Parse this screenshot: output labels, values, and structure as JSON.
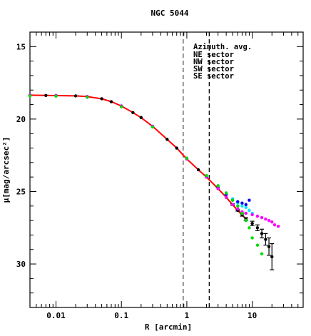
{
  "chart_data": {
    "type": "scatter",
    "title": "NGC 5044",
    "xlabel": "R [arcmin]",
    "ylabel": "μ[mag/arcsec²]",
    "xscale": "log",
    "xlim": [
      0.004,
      60
    ],
    "ylim": [
      33,
      14
    ],
    "y_inverted": true,
    "x_ticklabels": [
      "0.01",
      "0.1",
      "1",
      "10"
    ],
    "y_ticklabels": [
      "15",
      "20",
      "25",
      "30"
    ],
    "vlines": [
      {
        "x": 0.88,
        "style": "dashed",
        "color": "#555555"
      },
      {
        "x": 2.2,
        "style": "dashed",
        "color": "#000000"
      }
    ],
    "legend_position": "top-right",
    "legend": {
      "title": "Azimuth. avg.",
      "entries": [
        {
          "label": "NE sector",
          "color": "#00e5ff"
        },
        {
          "label": "NW sector",
          "color": "#0000ff"
        },
        {
          "label": "SW sector",
          "color": "#ff00ff"
        },
        {
          "label": "SE sector",
          "color": "#00dd00"
        }
      ]
    },
    "profile_model": {
      "x": [
        0.004,
        0.007,
        0.01,
        0.02,
        0.03,
        0.05,
        0.07,
        0.1,
        0.15,
        0.2,
        0.3,
        0.5,
        0.7,
        1.0,
        1.5,
        2.0,
        3.0,
        4.0,
        5.0,
        6.0,
        7.0,
        8.0
      ],
      "y": [
        18.35,
        18.37,
        18.38,
        18.4,
        18.45,
        18.6,
        18.8,
        19.1,
        19.55,
        19.9,
        20.5,
        21.4,
        22.0,
        22.75,
        23.5,
        24.0,
        24.8,
        25.4,
        25.9,
        26.3,
        26.6,
        26.9
      ]
    },
    "series": [
      {
        "name": "Azimuth. avg.",
        "color": "#000000",
        "x": [
          0.004,
          0.007,
          0.01,
          0.02,
          0.03,
          0.05,
          0.07,
          0.1,
          0.15,
          0.2,
          0.3,
          0.5,
          0.7,
          1.0,
          1.5,
          2.0,
          3.0,
          4.0,
          5.0,
          6.0,
          7.0,
          8.0,
          10.0,
          12.0,
          14.0,
          16.0,
          18.0,
          20.0
        ],
        "y": [
          18.35,
          18.37,
          18.38,
          18.4,
          18.45,
          18.6,
          18.8,
          19.1,
          19.55,
          19.9,
          20.5,
          21.4,
          22.0,
          22.75,
          23.5,
          24.0,
          24.8,
          25.4,
          25.9,
          26.3,
          26.6,
          26.9,
          27.2,
          27.5,
          27.9,
          28.3,
          28.8,
          29.5
        ],
        "err": [
          0,
          0,
          0,
          0,
          0,
          0,
          0,
          0,
          0,
          0,
          0,
          0,
          0,
          0,
          0,
          0,
          0,
          0,
          0.05,
          0.05,
          0.1,
          0.1,
          0.15,
          0.2,
          0.3,
          0.4,
          0.6,
          0.9
        ]
      },
      {
        "name": "NE sector",
        "color": "#00e5ff",
        "x": [
          0.004,
          0.01,
          0.03,
          0.1,
          0.3,
          1.0,
          2.0,
          3.0,
          4.0,
          5.0,
          6.0,
          7.0,
          8.0,
          9.0,
          10.0
        ],
        "y": [
          18.35,
          18.38,
          18.45,
          19.1,
          20.5,
          22.7,
          23.9,
          24.6,
          25.1,
          25.5,
          25.8,
          26.0,
          26.1,
          26.3,
          26.5
        ]
      },
      {
        "name": "NW sector",
        "color": "#0000ff",
        "x": [
          0.004,
          0.01,
          0.03,
          0.1,
          0.3,
          1.0,
          2.0,
          3.0,
          4.0,
          5.0,
          6.0,
          7.0,
          8.0,
          9.0
        ],
        "y": [
          18.35,
          18.38,
          18.45,
          19.1,
          20.5,
          22.75,
          24.0,
          24.7,
          25.2,
          25.6,
          25.7,
          25.8,
          25.9,
          25.6
        ]
      },
      {
        "name": "SW sector",
        "color": "#ff00ff",
        "x": [
          0.004,
          0.01,
          0.03,
          0.1,
          0.3,
          1.0,
          2.0,
          3.0,
          4.0,
          5.0,
          6.0,
          7.0,
          8.0,
          10.0,
          12.0,
          14.0,
          16.0,
          18.0,
          20.0,
          22.0,
          25.0
        ],
        "y": [
          18.35,
          18.38,
          18.45,
          19.1,
          20.5,
          22.75,
          24.0,
          24.8,
          25.4,
          25.9,
          26.2,
          26.4,
          26.5,
          26.6,
          26.7,
          26.8,
          26.9,
          27.0,
          27.1,
          27.3,
          27.4
        ]
      },
      {
        "name": "SE sector",
        "color": "#00dd00",
        "x": [
          0.004,
          0.01,
          0.03,
          0.1,
          0.3,
          1.0,
          2.0,
          3.0,
          4.0,
          5.0,
          6.0,
          7.0,
          8.0,
          9.0,
          10.0,
          12.0,
          14.0
        ],
        "y": [
          18.4,
          18.42,
          18.5,
          19.15,
          20.55,
          22.7,
          23.9,
          24.6,
          25.1,
          25.6,
          26.0,
          26.5,
          27.0,
          27.5,
          28.2,
          28.7,
          29.3
        ]
      }
    ]
  }
}
